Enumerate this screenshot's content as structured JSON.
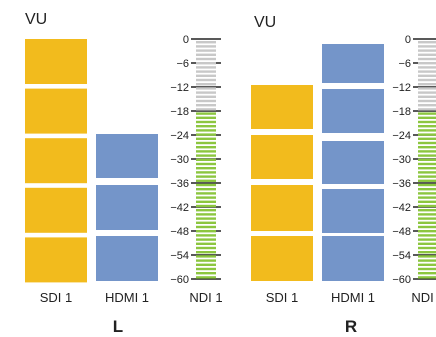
{
  "panels": [
    {
      "title": "VU",
      "channel_label": "L",
      "sources": [
        {
          "label": "SDI 1",
          "level": 6,
          "color": "#f2bb1d"
        },
        {
          "label": "HDMI 1",
          "level": 3,
          "color": "#7495c9"
        }
      ],
      "ndi": {
        "label": "NDI 1",
        "level_db": -18
      }
    },
    {
      "title": "VU",
      "channel_label": "R",
      "sources": [
        {
          "label": "SDI 1",
          "level": 5,
          "color": "#f2bb1d"
        },
        {
          "label": "HDMI 1",
          "level": 6,
          "color": "#7495c9"
        }
      ],
      "ndi": {
        "label": "NDI 1",
        "level_db": -18
      }
    }
  ],
  "scale": {
    "ticks": [
      "0",
      "6",
      "12",
      "18",
      "24",
      "30",
      "36",
      "42",
      "48",
      "54",
      "60"
    ],
    "ticks_prefix": [
      "",
      "−",
      "−",
      "−",
      "−",
      "−",
      "−",
      "−",
      "−",
      "−",
      "−"
    ],
    "min_db": -60,
    "max_db": 0
  },
  "colors": {
    "segment_gap": "#ffffff",
    "meter_active": "#8cc63f",
    "meter_inactive": "#c8c8c8",
    "meter_tick": "#222222"
  }
}
